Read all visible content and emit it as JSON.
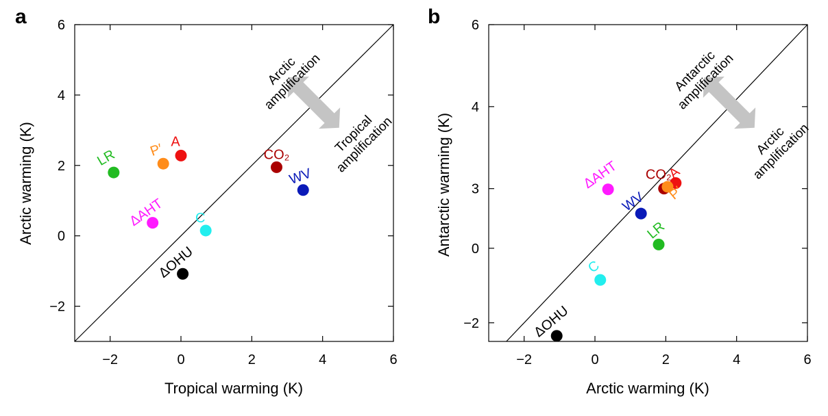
{
  "chart_data": [
    {
      "type": "scatter",
      "panel": "a",
      "xlabel": "Tropical warming (K)",
      "ylabel": "Arctic warming (K)",
      "xlim": [
        -3,
        6
      ],
      "ylim": [
        -3,
        6
      ],
      "xticks": [
        -2,
        0,
        2,
        4,
        6
      ],
      "yticks": [
        -2,
        0,
        2,
        4,
        6
      ],
      "xtick_labels": [
        "−2",
        "0",
        "2",
        "4",
        "6"
      ],
      "ytick_labels": [
        "−2",
        "0",
        "2",
        "4",
        "6"
      ],
      "diagonal": true,
      "annotation_upper": [
        "Arctic",
        "amplification"
      ],
      "annotation_lower": [
        "Tropical",
        "amplification"
      ],
      "points": [
        {
          "label": "LR",
          "x": -1.9,
          "y": 1.8,
          "color": "#22bb22"
        },
        {
          "label": "P′",
          "x": -0.5,
          "y": 2.05,
          "color": "#ff8c1a"
        },
        {
          "label": "A",
          "x": 0.0,
          "y": 2.28,
          "color": "#ee1111"
        },
        {
          "label": "CO₂",
          "x": 2.7,
          "y": 1.95,
          "color": "#aa0000"
        },
        {
          "label": "WV",
          "x": 3.45,
          "y": 1.3,
          "color": "#0a1ab8"
        },
        {
          "label": "ΔAHT",
          "x": -0.8,
          "y": 0.37,
          "color": "#ff1aff"
        },
        {
          "label": "C",
          "x": 0.7,
          "y": 0.15,
          "color": "#22eeee"
        },
        {
          "label": "ΔOHU",
          "x": 0.05,
          "y": -1.08,
          "color": "#000000"
        }
      ]
    },
    {
      "type": "scatter",
      "panel": "b",
      "xlabel": "Arctic warming (K)",
      "ylabel": "Antarctic warming (K)",
      "xlim": [
        -3,
        6
      ],
      "ylim": [
        -2.5,
        6
      ],
      "xticks": [
        -2,
        0,
        2,
        4,
        6
      ],
      "yticks": [
        -2,
        0,
        3,
        4,
        6
      ],
      "xtick_labels": [
        "−2",
        "0",
        "2",
        "4",
        "6"
      ],
      "ytick_labels": [
        "−2",
        "0",
        "3",
        "4",
        "6"
      ],
      "diagonal": true,
      "annotation_upper": [
        "Antarctic",
        "amplification"
      ],
      "annotation_lower": [
        "Arctic",
        "amplification"
      ],
      "points": [
        {
          "label": "ΔAHT",
          "x": 0.37,
          "y": 1.58,
          "color": "#ff1aff"
        },
        {
          "label": "CO₂",
          "x": 1.95,
          "y": 1.6,
          "color": "#aa0000"
        },
        {
          "label": "A",
          "x": 2.28,
          "y": 1.75,
          "color": "#ee1111"
        },
        {
          "label": "P′",
          "x": 2.05,
          "y": 1.65,
          "color": "#ff8c1a"
        },
        {
          "label": "WV",
          "x": 1.3,
          "y": 0.93,
          "color": "#0a1ab8"
        },
        {
          "label": "LR",
          "x": 1.8,
          "y": 0.1,
          "color": "#22bb22"
        },
        {
          "label": "C",
          "x": 0.15,
          "y": -0.85,
          "color": "#22eeee"
        },
        {
          "label": "ΔOHU",
          "x": -1.08,
          "y": -2.35,
          "color": "#000000"
        }
      ]
    }
  ]
}
